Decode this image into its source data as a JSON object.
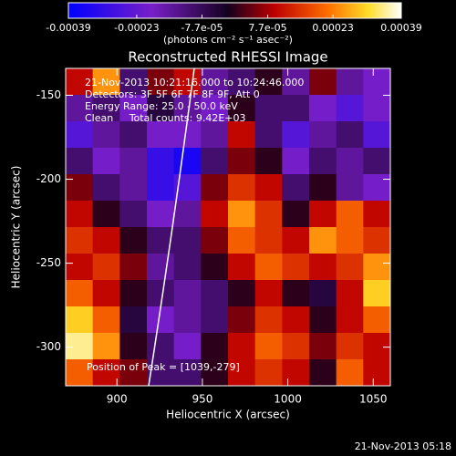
{
  "chart_data": {
    "type": "heatmap",
    "title": "Reconstructed RHESSI Image",
    "xlabel": "Heliocentric X (arcsec)",
    "ylabel": "Heliocentric Y (arcsec)",
    "xlim": [
      870,
      1060
    ],
    "xticks": [
      900,
      950,
      1000,
      1050
    ],
    "ylim": [
      -323,
      -134
    ],
    "yticks": [
      -150,
      -200,
      -250,
      -300
    ],
    "annotations": [
      "21-Nov-2013 10:21:16.000 to 10:24:46.000",
      "Detectors: 3F 5F 6F 7F 8F 9F, Att 0",
      "Energy Range: 25.0 - 50.0 keV",
      "Clean     Total counts: 9.42E+03",
      "Position of Peak = [1039,-279]"
    ],
    "timestamp": "21-Nov-2013 05:18",
    "colorbar": {
      "lim": [
        -0.00039,
        0.00039
      ],
      "label": "(photons cm⁻² s⁻¹ asec⁻²)",
      "ticks": [
        -0.00039,
        -0.00023,
        {
          "value": -7.7e-05,
          "label": "-7.7e-05"
        },
        {
          "value": 7.7e-05,
          "label": "7.7e-05"
        },
        0.00023,
        0.00039
      ]
    },
    "z": [
      [
        0.0001,
        0.00025,
        -0.0001,
        5e-05,
        0.0001,
        -0.00015,
        -0.0001,
        0,
        -0.00015,
        5e-05,
        -0.00015,
        -0.0002
      ],
      [
        -0.00015,
        -0.0001,
        -0.0002,
        -5e-05,
        -0.00015,
        -0.0002,
        0,
        -0.0001,
        -0.0001,
        -0.0002,
        -0.00025,
        -0.0002
      ],
      [
        -0.00025,
        -0.00015,
        -0.0001,
        -0.0002,
        -0.0002,
        -0.00015,
        0.0001,
        -0.0001,
        -0.00025,
        -0.00015,
        -0.0001,
        -0.00025
      ],
      [
        -0.0001,
        -0.0002,
        -0.00015,
        -0.0003,
        -0.00035,
        -0.0001,
        5e-05,
        0,
        -0.0002,
        -0.0001,
        -0.00015,
        -0.0001
      ],
      [
        5e-05,
        -0.0001,
        -0.00015,
        -0.0003,
        -0.00025,
        5e-05,
        0.00015,
        0.0001,
        -0.0001,
        0,
        -0.00015,
        -0.0002
      ],
      [
        0.0001,
        0,
        -0.0001,
        -0.0002,
        -0.00015,
        0.0001,
        0.00025,
        0.00015,
        0,
        0.0001,
        0.0002,
        0.0001
      ],
      [
        0.00015,
        0.0001,
        0,
        -0.0001,
        -0.0001,
        5e-05,
        0.0002,
        0.00015,
        0.0001,
        0.00025,
        0.0002,
        0.00015
      ],
      [
        0.0001,
        0.00015,
        5e-05,
        -0.00015,
        -0.0001,
        0,
        0.0001,
        0.0002,
        0.00015,
        0.0001,
        0.00015,
        0.00025
      ],
      [
        0.0002,
        0.0001,
        0,
        -0.0001,
        -0.00015,
        -0.0001,
        0,
        0.0001,
        0,
        -5e-05,
        0.0001,
        0.0003
      ],
      [
        0.0003,
        0.0002,
        -5e-05,
        -0.0002,
        -0.00015,
        -0.0001,
        5e-05,
        0.00015,
        0.0001,
        0,
        0.0001,
        0.0002
      ],
      [
        0.00035,
        0.00025,
        0,
        -0.0001,
        -0.0002,
        0,
        0.0001,
        0.0002,
        0.00015,
        5e-05,
        0.00015,
        0.0001
      ],
      [
        0.0002,
        0.0001,
        5e-05,
        -0.0001,
        -0.0001,
        0,
        0.0001,
        0.00015,
        0.0001,
        0,
        0.0002,
        0.0001
      ]
    ]
  }
}
